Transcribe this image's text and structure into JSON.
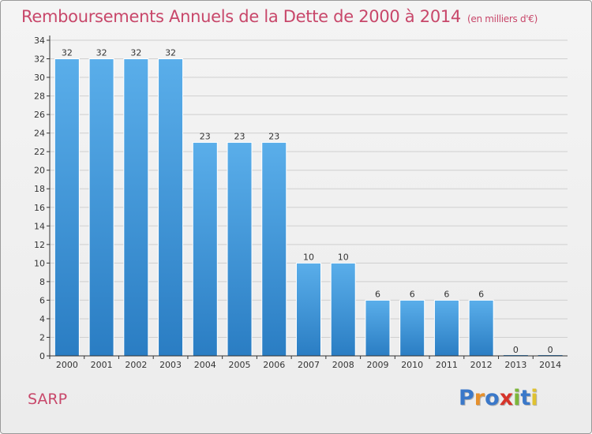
{
  "header": {
    "title": "Remboursements Annuels de la Dette de 2000 à 2014",
    "subtitle": "(en milliers d'€)"
  },
  "footer": {
    "commune": "SARP",
    "logo": {
      "text": "Proxiti",
      "letter_colors": [
        "#3a78c9",
        "#e6902c",
        "#3a78c9",
        "#d6342a",
        "#7cb63a",
        "#3a78c9",
        "#e0c230"
      ]
    }
  },
  "colors": {
    "bar_top": "#5aaeea",
    "bar_bottom": "#2a7dc3",
    "title": "#c8476a",
    "grid": "#cfcfcf",
    "axis": "#333333"
  },
  "chart_data": {
    "type": "bar",
    "categories": [
      "2000",
      "2001",
      "2002",
      "2003",
      "2004",
      "2005",
      "2006",
      "2007",
      "2008",
      "2009",
      "2010",
      "2011",
      "2012",
      "2013",
      "2014"
    ],
    "values": [
      32,
      32,
      32,
      32,
      23,
      23,
      23,
      10,
      10,
      6,
      6,
      6,
      6,
      0,
      0
    ],
    "data_labels": [
      "32",
      "32",
      "32",
      "32",
      "23",
      "23",
      "23",
      "10",
      "10",
      "6",
      "6",
      "6",
      "6",
      "0",
      "0"
    ],
    "ylim": [
      0,
      34
    ],
    "yticks": [
      0,
      2,
      4,
      6,
      8,
      10,
      12,
      14,
      16,
      18,
      20,
      22,
      24,
      26,
      28,
      30,
      32,
      34
    ],
    "grid": true,
    "xlabel": "",
    "ylabel": ""
  }
}
